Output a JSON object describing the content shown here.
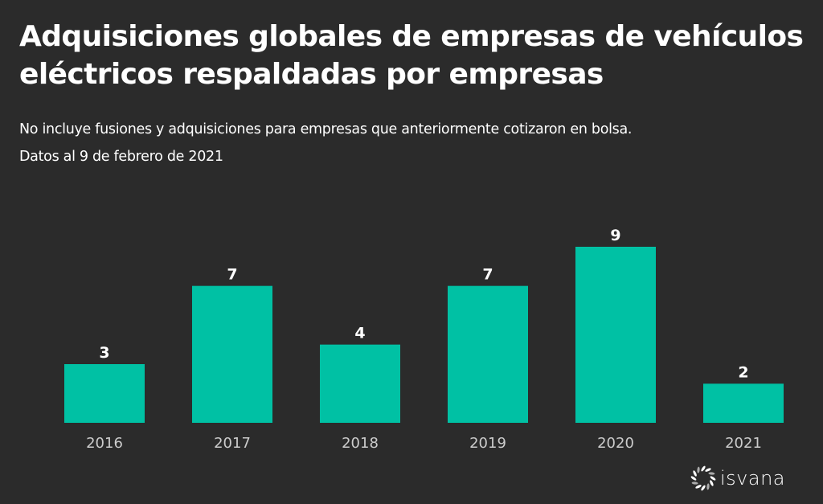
{
  "header": {
    "title": "Adquisiciones globales de empresas de vehículos eléctricos respaldadas por empresas",
    "subtitle": "No incluye fusiones y adquisiciones para empresas que anteriormente cotizaron en bolsa.",
    "date_note": "Datos al 9 de febrero de 2021"
  },
  "branding": {
    "logo_text": "isvana"
  },
  "colors": {
    "background": "#2b2b2b",
    "bar": "#00c1a4",
    "label": "#ffffff",
    "tick": "#cccccc"
  },
  "chart_data": {
    "type": "bar",
    "title": "Adquisiciones globales de empresas de vehículos eléctricos respaldadas por empresas",
    "subtitle": "No incluye fusiones y adquisiciones para empresas que anteriormente cotizaron en bolsa.",
    "categories": [
      "2016",
      "2017",
      "2018",
      "2019",
      "2020",
      "2021"
    ],
    "values": [
      3,
      7,
      4,
      7,
      9,
      2
    ],
    "xlabel": "",
    "ylabel": "",
    "ylim": [
      0,
      9
    ],
    "grid": false,
    "legend": "none",
    "data_labels": true
  }
}
